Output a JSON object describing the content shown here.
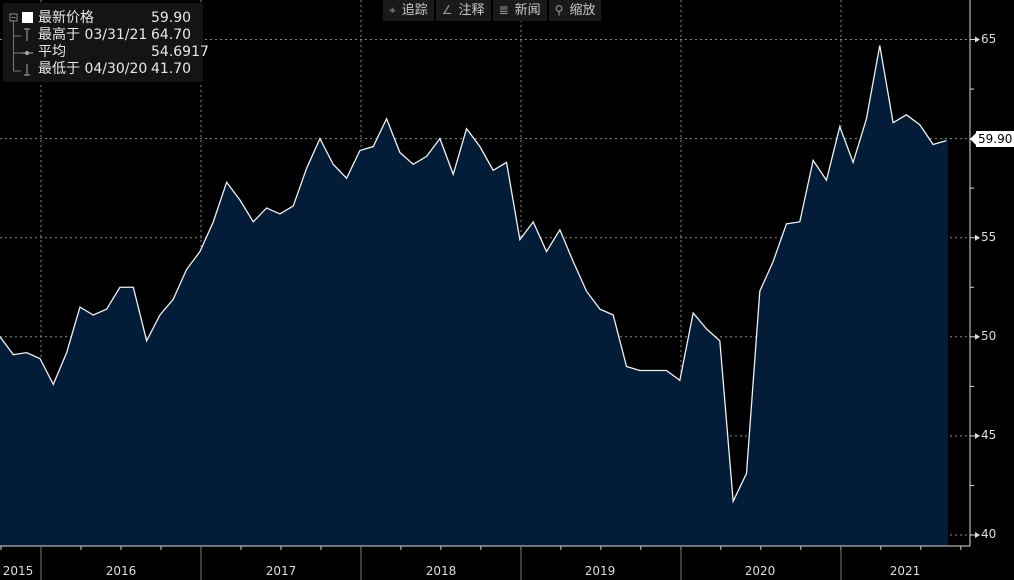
{
  "legend": {
    "items": [
      {
        "label": "最新价格",
        "date": "",
        "value": "59.90"
      },
      {
        "label": "最高于",
        "date": "03/31/21",
        "value": "64.70"
      },
      {
        "label": "平均",
        "date": "",
        "value": "54.6917"
      },
      {
        "label": "最低于",
        "date": "04/30/20",
        "value": "41.70"
      }
    ]
  },
  "toolbar": {
    "track": "追踪",
    "annotate": "注释",
    "news": "新闻",
    "zoom": "缩放"
  },
  "colors": {
    "background": "#000000",
    "area_fill": "#031c38",
    "line": "#ffffff",
    "grid": "#7a7a7a"
  },
  "chart_data": {
    "type": "area",
    "title": "",
    "xlabel": "",
    "ylabel": "",
    "ylim": [
      40,
      65
    ],
    "y_ticks": [
      "65",
      "55",
      "50",
      "45",
      "40"
    ],
    "x_tick_labels": [
      "2015",
      "2016",
      "2017",
      "2018",
      "2019",
      "2020",
      "2021"
    ],
    "grid": true,
    "y_axis_side": "right",
    "last_value_label": "59.90",
    "x_start": "2015-09",
    "x_end": "2021-08",
    "x_frequency": "monthly",
    "values": [
      50.0,
      49.1,
      49.2,
      48.9,
      47.6,
      49.2,
      51.5,
      51.1,
      51.4,
      52.5,
      52.5,
      49.8,
      51.1,
      51.9,
      53.4,
      54.3,
      55.8,
      57.8,
      56.9,
      55.8,
      56.5,
      56.2,
      56.6,
      58.5,
      60.0,
      58.7,
      58.0,
      59.4,
      59.6,
      61.0,
      59.3,
      58.7,
      59.1,
      60.0,
      58.2,
      60.5,
      59.6,
      58.4,
      58.8,
      54.9,
      55.8,
      54.3,
      55.4,
      53.8,
      52.3,
      51.4,
      51.1,
      48.5,
      48.3,
      48.3,
      48.3,
      47.8,
      51.2,
      50.4,
      49.8,
      41.7,
      43.1,
      52.3,
      53.8,
      55.7,
      55.8,
      58.9,
      57.9,
      60.6,
      58.8,
      61.0,
      64.7,
      60.8,
      61.2,
      60.7,
      59.7,
      59.9
    ]
  }
}
